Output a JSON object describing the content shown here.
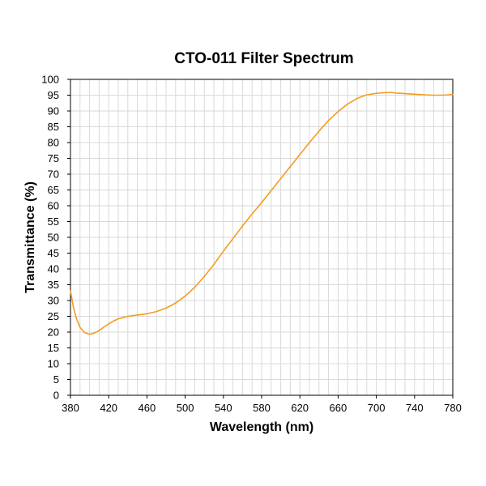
{
  "chart_data": {
    "type": "line",
    "title": "CTO-011 Filter Spectrum",
    "xlabel": "Wavelength (nm)",
    "ylabel": "Transmittance (%)",
    "xlim": [
      380,
      780
    ],
    "ylim": [
      0,
      100
    ],
    "x_major_ticks": [
      380,
      420,
      460,
      500,
      540,
      580,
      620,
      660,
      700,
      740,
      780
    ],
    "x_tick_labels": [
      "380",
      "420",
      "460",
      "500",
      "540",
      "580",
      "620",
      "660",
      "700",
      "740",
      "780"
    ],
    "y_major_ticks": [
      0,
      5,
      10,
      15,
      20,
      25,
      30,
      35,
      40,
      45,
      50,
      55,
      60,
      65,
      70,
      75,
      80,
      85,
      90,
      95,
      100
    ],
    "y_tick_labels": [
      "0",
      "5",
      "10",
      "15",
      "20",
      "25",
      "30",
      "35",
      "40",
      "45",
      "50",
      "55",
      "60",
      "65",
      "70",
      "75",
      "80",
      "85",
      "90",
      "95",
      "100"
    ],
    "x_minor_step": 10,
    "grid": true,
    "series": [
      {
        "color": "#f39c1e",
        "x": [
          380,
          383,
          386,
          390,
          395,
          400,
          405,
          410,
          415,
          420,
          425,
          430,
          435,
          440,
          445,
          450,
          460,
          470,
          480,
          490,
          500,
          510,
          520,
          530,
          540,
          550,
          560,
          570,
          580,
          590,
          600,
          610,
          620,
          630,
          640,
          650,
          660,
          670,
          680,
          690,
          700,
          710,
          715,
          720,
          730,
          740,
          750,
          760,
          770,
          780
        ],
        "y": [
          33,
          28,
          24.5,
          21.5,
          19.8,
          19.3,
          19.7,
          20.5,
          21.6,
          22.6,
          23.5,
          24.2,
          24.6,
          25,
          25.2,
          25.4,
          25.8,
          26.5,
          27.6,
          29.2,
          31.4,
          34.2,
          37.6,
          41.4,
          45.6,
          49.6,
          53.6,
          57.4,
          61,
          64.8,
          68.6,
          72.4,
          76.2,
          80,
          83.6,
          87,
          89.8,
          92.2,
          94,
          95.1,
          95.6,
          95.8,
          95.9,
          95.7,
          95.5,
          95.3,
          95.1,
          95.0,
          95.0,
          95.2
        ]
      }
    ]
  }
}
